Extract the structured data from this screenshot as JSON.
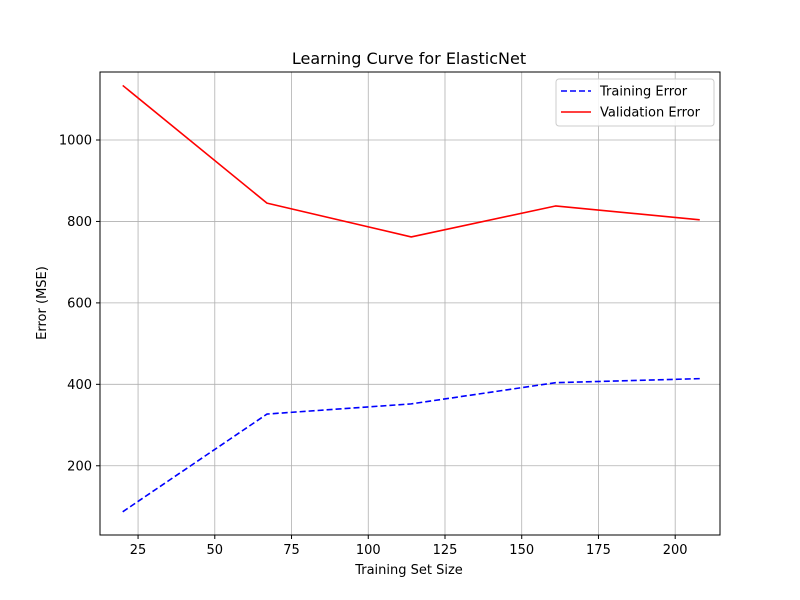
{
  "chart_data": {
    "type": "line",
    "title": "Learning Curve for ElasticNet",
    "xlabel": "Training Set Size",
    "ylabel": "Error (MSE)",
    "xlim": [
      12.6,
      214.6
    ],
    "ylim": [
      30,
      1167
    ],
    "xticks": [
      25,
      50,
      75,
      100,
      125,
      150,
      175,
      200
    ],
    "yticks": [
      200,
      400,
      600,
      800,
      1000
    ],
    "grid": true,
    "legend_position": "top-right",
    "x": [
      20,
      67,
      114,
      161,
      208
    ],
    "series": [
      {
        "name": "Training Error",
        "values": [
          87,
          327,
          352,
          404,
          414
        ],
        "color": "#0000ff",
        "style": "dashed"
      },
      {
        "name": "Validation Error",
        "values": [
          1134,
          845,
          762,
          838,
          804
        ],
        "color": "#ff0000",
        "style": "solid"
      }
    ]
  }
}
